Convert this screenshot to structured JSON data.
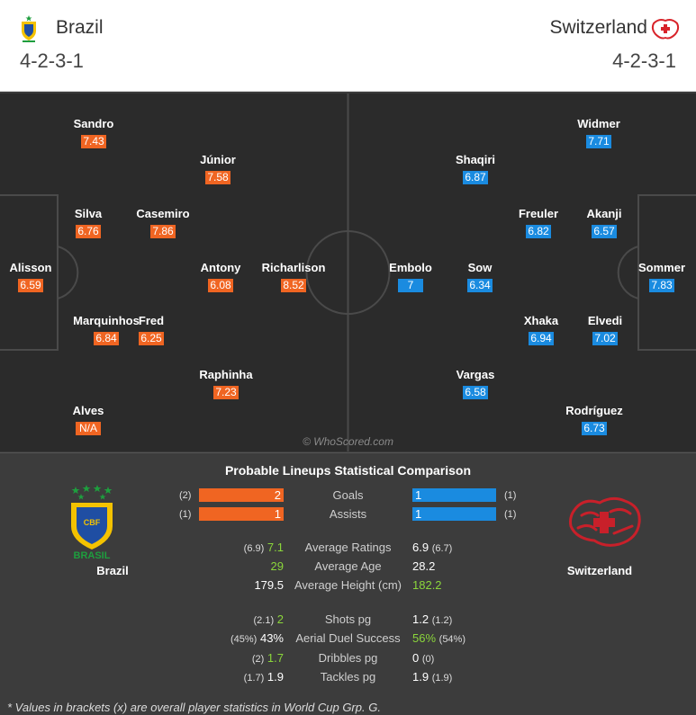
{
  "header": {
    "home_name": "Brazil",
    "away_name": "Switzerland",
    "home_formation": "4-2-3-1",
    "away_formation": "4-2-3-1"
  },
  "pitch": {
    "watermark": "© WhoScored.com",
    "home_players": [
      {
        "name": "Sandro",
        "rating": "7.43"
      },
      {
        "name": "Júnior",
        "rating": "7.58"
      },
      {
        "name": "Silva",
        "rating": "6.76"
      },
      {
        "name": "Casemiro",
        "rating": "7.86"
      },
      {
        "name": "Alisson",
        "rating": "6.59"
      },
      {
        "name": "Antony",
        "rating": "6.08"
      },
      {
        "name": "Richarlison",
        "rating": "8.52"
      },
      {
        "name": "Marquinhos",
        "rating": "6.84"
      },
      {
        "name": "Fred",
        "rating": "6.25"
      },
      {
        "name": "Raphinha",
        "rating": "7.23"
      },
      {
        "name": "Alves",
        "rating": "N/A"
      }
    ],
    "away_players": [
      {
        "name": "Widmer",
        "rating": "7.71"
      },
      {
        "name": "Shaqiri",
        "rating": "6.87"
      },
      {
        "name": "Freuler",
        "rating": "6.82"
      },
      {
        "name": "Akanji",
        "rating": "6.57"
      },
      {
        "name": "Embolo",
        "rating": "7"
      },
      {
        "name": "Sow",
        "rating": "6.34"
      },
      {
        "name": "Sommer",
        "rating": "7.83"
      },
      {
        "name": "Xhaka",
        "rating": "6.94"
      },
      {
        "name": "Elvedi",
        "rating": "7.02"
      },
      {
        "name": "Vargas",
        "rating": "6.58"
      },
      {
        "name": "Rodríguez",
        "rating": "6.73"
      }
    ]
  },
  "stats": {
    "title": "Probable Lineups Statistical Comparison",
    "home_label": "Brazil",
    "away_label": "Switzerland",
    "home_badge_text": "BRASIL",
    "badge_cbf": "CBF",
    "goals": {
      "label": "Goals",
      "home": "2",
      "home_bracket": "(2)",
      "away": "1",
      "away_bracket": "(1)"
    },
    "assists": {
      "label": "Assists",
      "home": "1",
      "home_bracket": "(1)",
      "away": "1",
      "away_bracket": "(1)"
    },
    "rows": [
      {
        "label": "Average Ratings",
        "home_bracket": "(6.9)",
        "home": "7.1",
        "away": "6.9",
        "away_bracket": "(6.7)"
      },
      {
        "label": "Average Age",
        "home_bracket": "",
        "home": "29",
        "away": "28.2",
        "away_bracket": ""
      },
      {
        "label": "Average Height (cm)",
        "home_bracket": "",
        "home": "179.5",
        "away": "182.2",
        "away_bracket": ""
      },
      {
        "label": "Shots pg",
        "home_bracket": "(2.1)",
        "home": "2",
        "away": "1.2",
        "away_bracket": "(1.2)"
      },
      {
        "label": "Aerial Duel Success",
        "home_bracket": "(45%)",
        "home": "43%",
        "away": "56%",
        "away_bracket": "(54%)"
      },
      {
        "label": "Dribbles pg",
        "home_bracket": "(2)",
        "home": "1.7",
        "away": "0",
        "away_bracket": "(0)"
      },
      {
        "label": "Tackles pg",
        "home_bracket": "(1.7)",
        "home": "1.9",
        "away": "1.9",
        "away_bracket": "(1.9)"
      }
    ],
    "footnote": "* Values in brackets (x) are overall player statistics in World Cup Grp. G."
  },
  "colors": {
    "home": "#f06522",
    "away": "#1a8be0",
    "better": "#8bd63b",
    "pitch": "#2b2b2b"
  }
}
